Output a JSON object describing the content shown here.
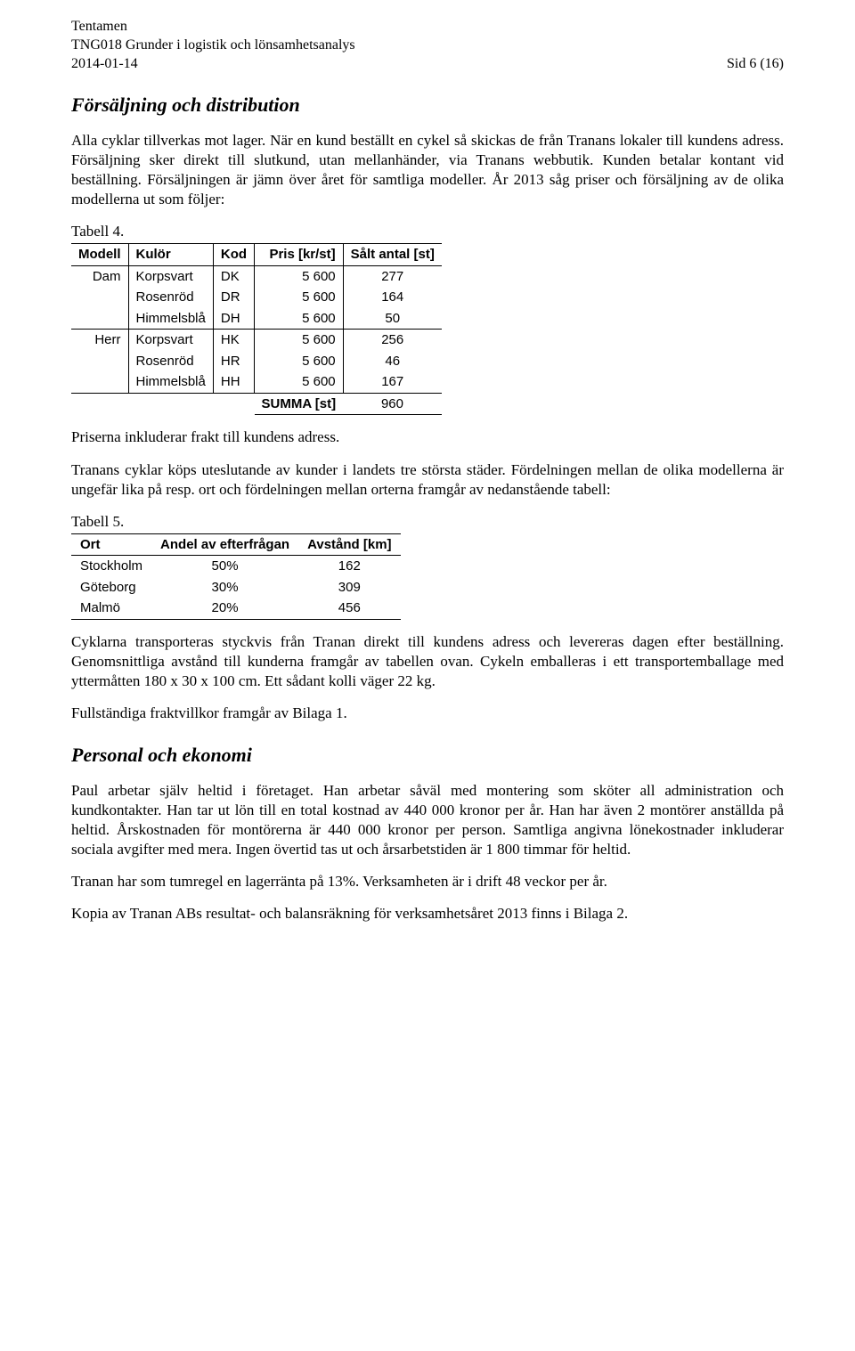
{
  "header": {
    "l1": "Tentamen",
    "l2": "TNG018 Grunder i logistik och lönsamhetsanalys",
    "date": "2014-01-14",
    "page": "Sid 6 (16)"
  },
  "s1": {
    "title": "Försäljning och distribution",
    "p1": "Alla cyklar tillverkas mot lager. När en kund beställt en cykel så skickas de från Tranans lokaler till kundens adress. Försäljning sker direkt till slutkund, utan mellanhänder, via Tranans webbutik. Kunden betalar kontant vid beställning. Försäljningen är jämn över året för samtliga modeller. År 2013 såg priser och försäljning av de olika modellerna ut som följer:"
  },
  "t4": {
    "label": "Tabell 4.",
    "headers": {
      "modell": "Modell",
      "kulor": "Kulör",
      "kod": "Kod",
      "pris": "Pris [kr/st]",
      "salt": "Sålt antal [st]"
    },
    "group1": "Dam",
    "group2": "Herr",
    "rows": [
      {
        "kulor": "Korpsvart",
        "kod": "DK",
        "pris": "5 600",
        "salt": "277"
      },
      {
        "kulor": "Rosenröd",
        "kod": "DR",
        "pris": "5 600",
        "salt": "164"
      },
      {
        "kulor": "Himmelsblå",
        "kod": "DH",
        "pris": "5 600",
        "salt": "50"
      },
      {
        "kulor": "Korpsvart",
        "kod": "HK",
        "pris": "5 600",
        "salt": "256"
      },
      {
        "kulor": "Rosenröd",
        "kod": "HR",
        "pris": "5 600",
        "salt": "46"
      },
      {
        "kulor": "Himmelsblå",
        "kod": "HH",
        "pris": "5 600",
        "salt": "167"
      }
    ],
    "sumLabel": "SUMMA [st]",
    "sumValue": "960"
  },
  "s1b": {
    "p2": "Priserna inkluderar frakt till kundens adress.",
    "p3": "Tranans cyklar köps uteslutande av kunder i landets tre största städer. Fördelningen mellan de olika modellerna är ungefär lika på resp. ort och fördelningen mellan orterna framgår av nedanstående tabell:"
  },
  "t5": {
    "label": "Tabell 5.",
    "headers": {
      "ort": "Ort",
      "andel": "Andel av efterfrågan",
      "avstand": "Avstånd [km]"
    },
    "rows": [
      {
        "ort": "Stockholm",
        "andel": "50%",
        "avstand": "162"
      },
      {
        "ort": "Göteborg",
        "andel": "30%",
        "avstand": "309"
      },
      {
        "ort": "Malmö",
        "andel": "20%",
        "avstand": "456"
      }
    ]
  },
  "s1c": {
    "p4": "Cyklarna transporteras styckvis från Tranan direkt till kundens adress och levereras dagen efter beställning. Genomsnittliga avstånd till kunderna framgår av tabellen ovan. Cykeln emballeras i ett transportemballage med yttermåtten 180 x 30 x 100 cm. Ett sådant kolli väger 22 kg.",
    "p5": "Fullständiga fraktvillkor framgår av Bilaga 1."
  },
  "s2": {
    "title": "Personal och ekonomi",
    "p1": "Paul arbetar själv heltid i företaget. Han arbetar såväl med montering som sköter all administration och kundkontakter. Han tar ut lön till en total kostnad av 440 000 kronor per år. Han har även 2 montörer anställda på heltid. Årskostnaden för montörerna är 440 000 kronor per person. Samtliga angivna lönekostnader inkluderar sociala avgifter med mera. Ingen övertid tas ut och årsarbetstiden är 1 800 timmar för heltid.",
    "p2": "Tranan har som tumregel en lagerränta på 13%. Verksamheten är i drift 48 veckor per år.",
    "p3": "Kopia av Tranan ABs resultat- och balansräkning för verksamhetsåret 2013 finns i Bilaga 2."
  },
  "style": {
    "fontBody": "Times New Roman",
    "fontTables": "Arial",
    "textColor": "#000000",
    "backgroundColor": "#ffffff",
    "borderColor": "#000000",
    "pageWidth": 960,
    "pageHeight": 1517,
    "bodyFontSize": 17,
    "tableFontSize": 15,
    "sectionTitleFontSize": 22
  }
}
